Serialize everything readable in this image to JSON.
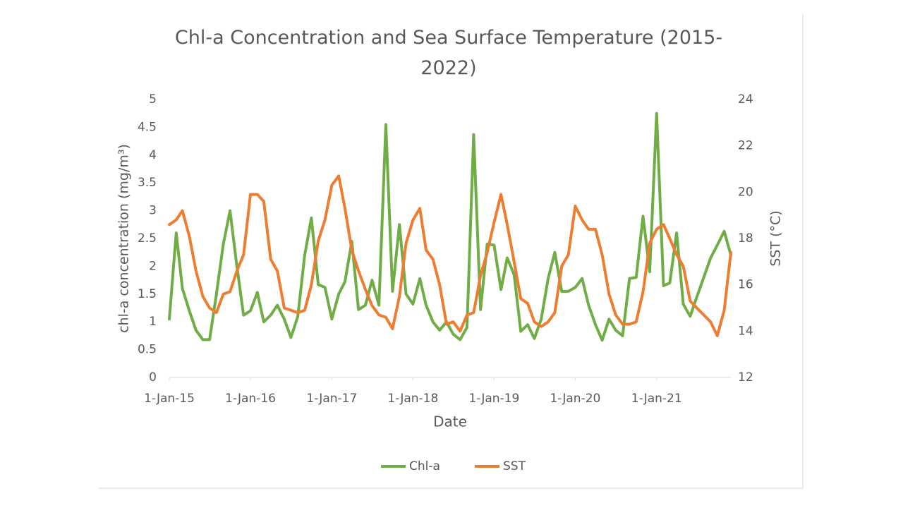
{
  "chart_data": {
    "type": "line",
    "title": "Chl-a Concentration and Sea Surface Temperature (2015-2022)",
    "x_label": "Date",
    "y_label": "chl-a concentration (mg/m³)",
    "y2_label": "SST (°C)",
    "x": [
      "2015-01-01",
      "2015-02-01",
      "2015-03-01",
      "2015-04-01",
      "2015-05-01",
      "2015-06-01",
      "2015-07-01",
      "2015-08-01",
      "2015-09-01",
      "2015-10-01",
      "2015-11-01",
      "2015-12-01",
      "2016-01-01",
      "2016-02-01",
      "2016-03-01",
      "2016-04-01",
      "2016-05-01",
      "2016-06-01",
      "2016-07-01",
      "2016-08-01",
      "2016-09-01",
      "2016-10-01",
      "2016-11-01",
      "2016-12-01",
      "2017-01-01",
      "2017-02-01",
      "2017-03-01",
      "2017-04-01",
      "2017-05-01",
      "2017-06-01",
      "2017-07-01",
      "2017-08-01",
      "2017-09-01",
      "2017-10-01",
      "2017-11-01",
      "2017-12-01",
      "2018-01-01",
      "2018-02-01",
      "2018-03-01",
      "2018-04-01",
      "2018-05-01",
      "2018-06-01",
      "2018-07-01",
      "2018-08-01",
      "2018-09-01",
      "2018-10-01",
      "2018-11-01",
      "2018-12-01",
      "2019-01-01",
      "2019-02-01",
      "2019-03-01",
      "2019-04-01",
      "2019-05-01",
      "2019-06-01",
      "2019-07-01",
      "2019-08-01",
      "2019-09-01",
      "2019-10-01",
      "2019-11-01",
      "2019-12-01",
      "2020-01-01",
      "2020-02-01",
      "2020-03-01",
      "2020-04-01",
      "2020-05-01",
      "2020-06-01",
      "2020-07-01",
      "2020-08-01",
      "2020-09-01",
      "2020-10-01",
      "2020-11-01",
      "2020-12-01",
      "2021-01-01",
      "2021-02-01",
      "2021-03-01",
      "2021-04-01",
      "2021-05-01",
      "2021-06-01",
      "2021-07-01",
      "2021-08-01",
      "2021-09-01",
      "2021-10-01",
      "2021-11-01",
      "2021-12-01"
    ],
    "series": [
      {
        "name": "Chl-a",
        "color": "#70ad47",
        "axis": "y",
        "values": [
          1.05,
          2.6,
          1.6,
          1.2,
          0.85,
          0.68,
          0.68,
          1.5,
          2.4,
          3.0,
          2.0,
          1.12,
          1.2,
          1.53,
          1.0,
          1.12,
          1.3,
          1.05,
          0.72,
          1.1,
          2.2,
          2.87,
          1.67,
          1.62,
          1.05,
          1.5,
          1.72,
          2.45,
          1.22,
          1.3,
          1.75,
          1.3,
          4.55,
          1.55,
          2.75,
          1.5,
          1.32,
          1.78,
          1.3,
          1.0,
          0.85,
          1.0,
          0.78,
          0.68,
          0.9,
          4.37,
          1.22,
          2.4,
          2.38,
          1.58,
          2.15,
          1.85,
          0.83,
          0.95,
          0.7,
          1.05,
          1.78,
          2.25,
          1.55,
          1.55,
          1.62,
          1.78,
          1.3,
          0.95,
          0.67,
          1.05,
          0.85,
          0.75,
          1.78,
          1.8,
          2.9,
          1.9,
          4.75,
          1.65,
          1.7,
          2.6,
          1.32,
          1.1,
          1.45,
          1.8,
          2.15,
          2.38,
          2.63,
          2.2
        ]
      },
      {
        "name": "SST",
        "color": "#ed7d31",
        "axis": "y2",
        "values": [
          18.6,
          18.8,
          19.2,
          18.1,
          16.6,
          15.5,
          15.0,
          14.8,
          15.6,
          15.7,
          16.6,
          17.3,
          19.9,
          19.9,
          19.6,
          17.1,
          16.6,
          15.0,
          14.9,
          14.8,
          14.9,
          16.0,
          17.9,
          18.8,
          20.3,
          20.7,
          19.3,
          17.5,
          16.6,
          15.8,
          15.1,
          14.7,
          14.6,
          14.1,
          15.5,
          17.8,
          18.8,
          19.3,
          17.5,
          17.1,
          16.0,
          14.3,
          14.4,
          14.0,
          14.7,
          14.8,
          16.4,
          17.4,
          18.7,
          19.9,
          18.6,
          17.0,
          15.4,
          15.2,
          14.4,
          14.2,
          14.4,
          14.8,
          16.8,
          17.3,
          19.4,
          18.8,
          18.4,
          18.4,
          17.3,
          15.6,
          14.7,
          14.3,
          14.3,
          14.4,
          15.7,
          17.8,
          18.4,
          18.6,
          18.0,
          17.3,
          16.8,
          15.3,
          15.0,
          14.7,
          14.4,
          13.8,
          14.9,
          17.4
        ]
      }
    ],
    "xlim": [
      "2015-01-01",
      "2021-12-01"
    ],
    "xticks": [
      {
        "value": "2015-01-01",
        "label": "1-Jan-15"
      },
      {
        "value": "2016-01-01",
        "label": "1-Jan-16"
      },
      {
        "value": "2017-01-01",
        "label": "1-Jan-17"
      },
      {
        "value": "2018-01-01",
        "label": "1-Jan-18"
      },
      {
        "value": "2019-01-01",
        "label": "1-Jan-19"
      },
      {
        "value": "2020-01-01",
        "label": "1-Jan-20"
      },
      {
        "value": "2021-01-01",
        "label": "1-Jan-21"
      }
    ],
    "ylim": [
      0,
      5
    ],
    "yticks": [
      0,
      0.5,
      1,
      1.5,
      2,
      2.5,
      3,
      3.5,
      4,
      4.5,
      5
    ],
    "y2lim": [
      12,
      24
    ],
    "y2ticks": [
      12,
      14,
      16,
      18,
      20,
      22,
      24
    ],
    "grid": false,
    "legend": "bottom"
  }
}
